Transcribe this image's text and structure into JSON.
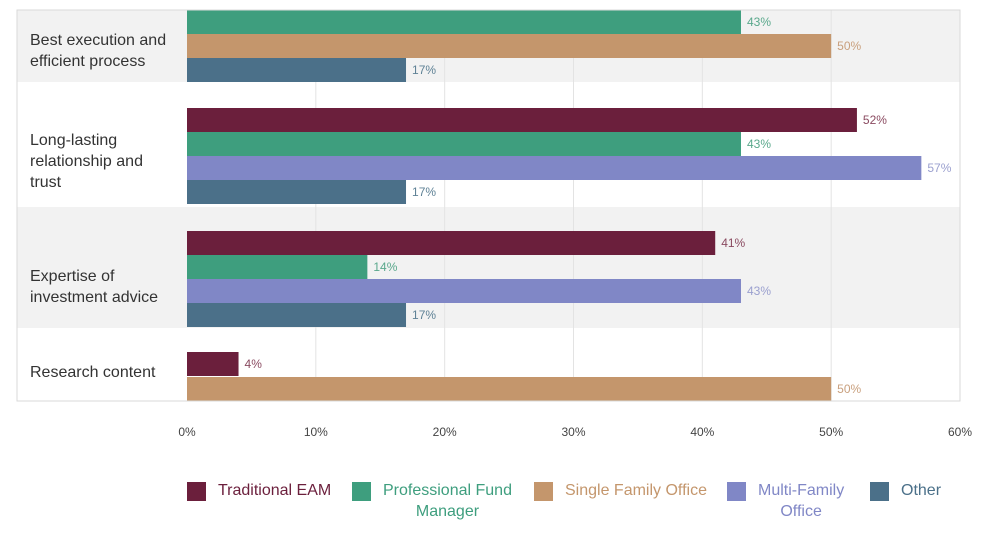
{
  "chart_data": {
    "type": "bar",
    "orientation": "horizontal",
    "categories": [
      "Best execution and efficient process",
      "Long-lasting relationship and trust",
      "Expertise of investment advice",
      "Research content"
    ],
    "category_labels": [
      "Best execution and\nefficient process",
      "Long-lasting\nrelationship and\ntrust",
      "Expertise of\ninvestment advice",
      "Research content"
    ],
    "series": [
      {
        "name": "Traditional EAM",
        "legend_label": "Traditional EAM",
        "color": "#6b1f3c",
        "label_color": "#8a4a60",
        "values": [
          null,
          52,
          41,
          4
        ]
      },
      {
        "name": "Professional Fund Manager",
        "legend_label": "Professional Fund\nManager",
        "color": "#3e9e7e",
        "label_color": "#5aa88c",
        "values": [
          43,
          43,
          14,
          null
        ]
      },
      {
        "name": "Single Family Office",
        "legend_label": "Single Family Office",
        "color": "#c4966c",
        "label_color": "#c9a07e",
        "values": [
          50,
          null,
          null,
          50
        ]
      },
      {
        "name": "Multi-Family Office",
        "legend_label": "Multi-Family\nOffice",
        "color": "#8087c6",
        "label_color": "#9ba0cf",
        "values": [
          null,
          57,
          43,
          null
        ]
      },
      {
        "name": "Other",
        "legend_label": "Other",
        "color": "#4b7089",
        "label_color": "#5f8296",
        "values": [
          17,
          17,
          17,
          null
        ]
      }
    ],
    "x_ticks": [
      "0%",
      "10%",
      "20%",
      "30%",
      "40%",
      "50%",
      "60%"
    ],
    "xlim": [
      0,
      60
    ],
    "value_suffix": "%",
    "title": "",
    "xlabel": "",
    "ylabel": "",
    "grid": true,
    "legend_position": "bottom"
  }
}
